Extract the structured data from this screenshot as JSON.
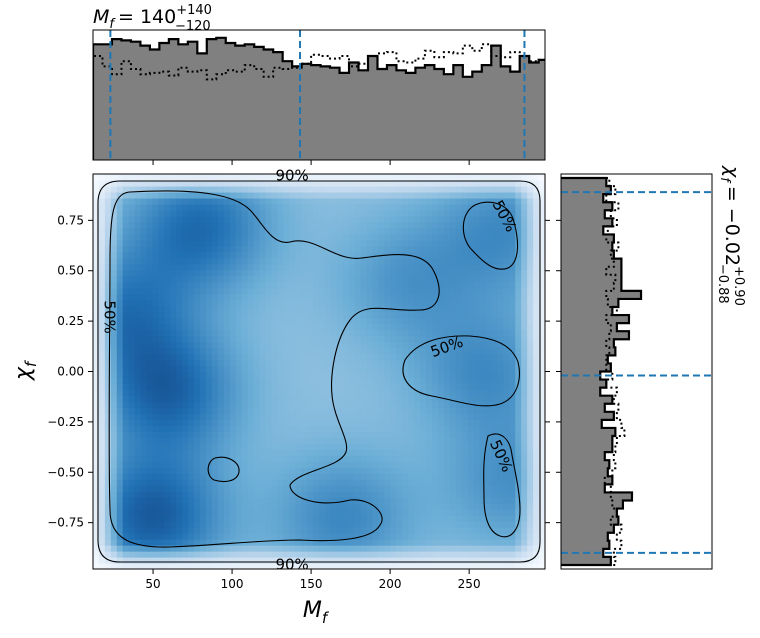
{
  "chart_data": [
    {
      "type": "heatmap",
      "panel": "joint",
      "xlabel": "M",
      "xlabel_sub": "f",
      "ylabel": "χ",
      "ylabel_sub": "f",
      "xlim": [
        12,
        298
      ],
      "ylim": [
        -0.98,
        0.98
      ],
      "xticks": [
        50,
        100,
        150,
        200,
        250
      ],
      "yticks": [
        0.75,
        0.5,
        0.25,
        0.0,
        -0.25,
        -0.5,
        -0.75
      ],
      "ytick_labels": [
        "0.75",
        "0.50",
        "0.25",
        "0.00",
        "−0.25",
        "−0.50",
        "−0.75"
      ],
      "colormap": [
        "#f7fbff",
        "#c6dbef",
        "#6baed6",
        "#2171b5",
        "#08306b"
      ],
      "density_peaks": [
        {
          "x": 50,
          "y": -0.72,
          "weight": 1.0
        },
        {
          "x": 60,
          "y": -0.1,
          "weight": 0.9
        },
        {
          "x": 80,
          "y": 0.72,
          "weight": 0.85
        },
        {
          "x": 30,
          "y": 0.3,
          "weight": 0.7
        },
        {
          "x": 170,
          "y": -0.72,
          "weight": 0.6
        },
        {
          "x": 272,
          "y": 0.7,
          "weight": 0.55
        },
        {
          "x": 260,
          "y": 0.0,
          "weight": 0.55
        },
        {
          "x": 278,
          "y": -0.55,
          "weight": 0.5
        },
        {
          "x": 210,
          "y": 0.45,
          "weight": 0.45
        }
      ],
      "contours": [
        {
          "label": "90%",
          "label_positions": [
            [
              138,
              0.97
            ],
            [
              138,
              -0.96
            ]
          ]
        },
        {
          "label": "50%",
          "label_positions": [
            [
              22,
              0.27
            ],
            [
              272,
              0.77
            ],
            [
              236,
              0.12
            ],
            [
              270,
              -0.42
            ]
          ]
        }
      ]
    },
    {
      "type": "histogram",
      "panel": "top-marginal",
      "title_prefix": "M",
      "title_sub": "f",
      "title_median": "= 140",
      "title_upper": "+140",
      "title_lower": "−120",
      "quantile_lines": [
        23,
        143,
        285
      ],
      "quantile_color": "#1f77b4",
      "fill_color": "#808080",
      "series": [
        {
          "name": "",
          "style": "solid",
          "x": [
            12,
            18,
            24,
            30,
            36,
            42,
            48,
            54,
            60,
            66,
            72,
            78,
            84,
            90,
            96,
            102,
            108,
            114,
            120,
            126,
            132,
            138,
            144,
            150,
            156,
            162,
            168,
            174,
            180,
            186,
            192,
            198,
            204,
            210,
            216,
            222,
            228,
            234,
            240,
            246,
            252,
            258,
            264,
            270,
            276,
            282,
            288,
            294
          ],
          "values": [
            0.89,
            0.89,
            0.93,
            0.92,
            0.91,
            0.88,
            0.85,
            0.9,
            0.93,
            0.89,
            0.91,
            0.82,
            0.93,
            0.94,
            0.9,
            0.88,
            0.89,
            0.87,
            0.85,
            0.83,
            0.76,
            0.72,
            0.74,
            0.73,
            0.72,
            0.71,
            0.67,
            0.75,
            0.69,
            0.8,
            0.7,
            0.73,
            0.69,
            0.67,
            0.71,
            0.73,
            0.7,
            0.66,
            0.73,
            0.64,
            0.68,
            0.73,
            0.88,
            0.72,
            0.68,
            0.8,
            0.75,
            0.77
          ]
        },
        {
          "name": "",
          "style": "dotted",
          "x": [
            12,
            18,
            24,
            30,
            36,
            42,
            48,
            54,
            60,
            66,
            72,
            78,
            84,
            90,
            96,
            102,
            108,
            114,
            120,
            126,
            132,
            138,
            144,
            150,
            156,
            162,
            168,
            174,
            180,
            186,
            192,
            198,
            204,
            210,
            216,
            222,
            228,
            234,
            240,
            246,
            252,
            258,
            264,
            270,
            276,
            282,
            288,
            294
          ],
          "values": [
            0.8,
            0.72,
            0.66,
            0.76,
            0.7,
            0.66,
            0.67,
            0.68,
            0.65,
            0.71,
            0.68,
            0.69,
            0.62,
            0.66,
            0.69,
            0.68,
            0.73,
            0.7,
            0.64,
            0.71,
            0.7,
            0.71,
            0.74,
            0.81,
            0.8,
            0.78,
            0.8,
            0.72,
            0.74,
            0.8,
            0.82,
            0.83,
            0.76,
            0.75,
            0.78,
            0.84,
            0.79,
            0.83,
            0.82,
            0.88,
            0.84,
            0.89,
            0.8,
            0.79,
            0.83,
            0.8,
            0.76,
            0.77
          ]
        }
      ]
    },
    {
      "type": "histogram",
      "panel": "right-marginal",
      "orientation": "horizontal",
      "title_prefix": "χ",
      "title_sub": "f",
      "title_median": "= −0.02",
      "title_upper": "+0.90",
      "title_lower": "−0.88",
      "quantile_lines": [
        0.89,
        -0.02,
        -0.9
      ],
      "quantile_color": "#1f77b4",
      "fill_color": "#808080",
      "series": [
        {
          "name": "",
          "style": "solid",
          "y": [
            0.94,
            0.9,
            0.86,
            0.82,
            0.78,
            0.74,
            0.7,
            0.66,
            0.62,
            0.58,
            0.54,
            0.5,
            0.46,
            0.42,
            0.38,
            0.34,
            0.3,
            0.26,
            0.22,
            0.18,
            0.14,
            0.1,
            0.06,
            0.02,
            -0.02,
            -0.06,
            -0.1,
            -0.14,
            -0.18,
            -0.22,
            -0.26,
            -0.3,
            -0.34,
            -0.38,
            -0.42,
            -0.46,
            -0.5,
            -0.54,
            -0.58,
            -0.62,
            -0.66,
            -0.7,
            -0.74,
            -0.78,
            -0.82,
            -0.86,
            -0.9,
            -0.94
          ],
          "values": [
            0.3,
            0.33,
            0.28,
            0.34,
            0.29,
            0.34,
            0.28,
            0.35,
            0.34,
            0.35,
            0.4,
            0.4,
            0.4,
            0.4,
            0.53,
            0.38,
            0.34,
            0.45,
            0.37,
            0.45,
            0.35,
            0.36,
            0.31,
            0.33,
            0.26,
            0.3,
            0.26,
            0.34,
            0.29,
            0.35,
            0.27,
            0.36,
            0.34,
            0.34,
            0.29,
            0.32,
            0.31,
            0.34,
            0.29,
            0.47,
            0.41,
            0.37,
            0.38,
            0.35,
            0.31,
            0.32,
            0.28,
            0.33
          ]
        },
        {
          "name": "",
          "style": "dotted",
          "y": [
            0.94,
            0.9,
            0.86,
            0.82,
            0.78,
            0.74,
            0.7,
            0.66,
            0.62,
            0.58,
            0.54,
            0.5,
            0.46,
            0.42,
            0.38,
            0.34,
            0.3,
            0.26,
            0.22,
            0.18,
            0.14,
            0.1,
            0.06,
            0.02,
            -0.02,
            -0.06,
            -0.1,
            -0.14,
            -0.18,
            -0.22,
            -0.26,
            -0.3,
            -0.34,
            -0.38,
            -0.42,
            -0.46,
            -0.5,
            -0.54,
            -0.58,
            -0.62,
            -0.66,
            -0.7,
            -0.74,
            -0.78,
            -0.82,
            -0.86,
            -0.9,
            -0.94
          ],
          "values": [
            0.32,
            0.36,
            0.3,
            0.38,
            0.33,
            0.37,
            0.31,
            0.3,
            0.38,
            0.33,
            0.35,
            0.3,
            0.36,
            0.35,
            0.3,
            0.31,
            0.37,
            0.3,
            0.33,
            0.32,
            0.3,
            0.32,
            0.3,
            0.3,
            0.34,
            0.3,
            0.37,
            0.35,
            0.38,
            0.37,
            0.4,
            0.42,
            0.37,
            0.36,
            0.35,
            0.36,
            0.34,
            0.29,
            0.33,
            0.33,
            0.34,
            0.37,
            0.33,
            0.4,
            0.37,
            0.4,
            0.35,
            0.36
          ]
        }
      ]
    }
  ]
}
